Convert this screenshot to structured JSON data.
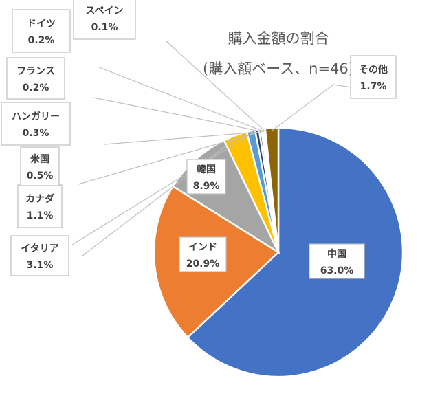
{
  "chart_data": {
    "type": "pie",
    "title": "購入金額の割合",
    "subtitle": "(購入額ベース、n=46)",
    "colors": {
      "中国": "#4472c4",
      "インド": "#ed7d31",
      "韓国": "#a5a5a5",
      "イタリア": "#ffc000",
      "カナダ": "#5b9bd5",
      "米国": "#264478",
      "ハンガリー": "#9e480e",
      "フランス": "#636363",
      "ドイツ": "#997300",
      "スペイン": "#43682b",
      "その他": "#8c6508"
    },
    "slices": [
      {
        "label": "中国",
        "value": 63.0,
        "value_label": "63.0%"
      },
      {
        "label": "インド",
        "value": 20.9,
        "value_label": "20.9%"
      },
      {
        "label": "韓国",
        "value": 8.9,
        "value_label": "8.9%"
      },
      {
        "label": "イタリア",
        "value": 3.1,
        "value_label": "3.1%"
      },
      {
        "label": "カナダ",
        "value": 1.1,
        "value_label": "1.1%"
      },
      {
        "label": "米国",
        "value": 0.5,
        "value_label": "0.5%"
      },
      {
        "label": "ハンガリー",
        "value": 0.3,
        "value_label": "0.3%"
      },
      {
        "label": "フランス",
        "value": 0.2,
        "value_label": "0.2%"
      },
      {
        "label": "ドイツ",
        "value": 0.2,
        "value_label": "0.2%"
      },
      {
        "label": "スペイン",
        "value": 0.1,
        "value_label": "0.1%"
      },
      {
        "label": "その他",
        "value": 1.7,
        "value_label": "1.7%"
      }
    ]
  }
}
